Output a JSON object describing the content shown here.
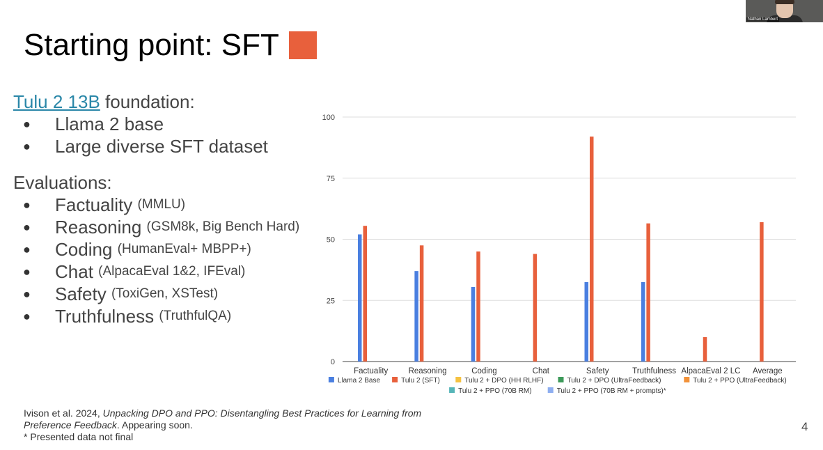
{
  "slide": {
    "title": "Starting point: SFT",
    "title_swatch_color": "#e8603c",
    "video": {
      "name": "Nathan Lambert"
    },
    "foundation": {
      "link_text": "Tulu 2 13B",
      "text": " foundation:",
      "bullets": [
        "Llama 2 base",
        "Large diverse SFT dataset"
      ]
    },
    "evaluations": {
      "heading": "Evaluations:",
      "items": [
        {
          "name": "Factuality",
          "detail": "(MMLU)"
        },
        {
          "name": "Reasoning",
          "detail": "(GSM8k, Big Bench Hard)"
        },
        {
          "name": "Coding",
          "detail": "(HumanEval+ MBPP+)"
        },
        {
          "name": "Chat",
          "detail": "(AlpacaEval 1&2, IFEval)"
        },
        {
          "name": "Safety",
          "detail": "(ToxiGen, XSTest)"
        },
        {
          "name": "Truthfulness",
          "detail": "(TruthfulQA)"
        }
      ]
    },
    "footer": {
      "authors": "Ivison et al. 2024, ",
      "paper_title_line1": "Unpacking DPO and PPO: Disentangling Best Practices for Learning from",
      "paper_title_line2": "Preference Feedback",
      "suffix": ". Appearing soon.",
      "note": "* Presented data not final"
    },
    "page_number": "4"
  },
  "chart_data": {
    "type": "bar",
    "categories": [
      "Factuality",
      "Reasoning",
      "Coding",
      "Chat",
      "Safety",
      "Truthfulness",
      "AlpacaEval 2 LC",
      "Average"
    ],
    "ylim": [
      0,
      100
    ],
    "yticks": [
      0,
      25,
      50,
      75,
      100
    ],
    "grid": true,
    "legend_position": "bottom",
    "series": [
      {
        "name": "Llama 2 Base",
        "color": "#4a7fe0",
        "values": [
          52,
          37,
          30.5,
          null,
          32.5,
          32.5,
          null,
          null
        ]
      },
      {
        "name": "Tulu 2 (SFT)",
        "color": "#e8603c",
        "values": [
          55.5,
          47.5,
          45,
          44,
          92,
          56.5,
          10,
          57
        ]
      },
      {
        "name": "Tulu 2 + DPO (HH RLHF)",
        "color": "#f5c242",
        "values": [
          null,
          null,
          null,
          null,
          null,
          null,
          null,
          null
        ]
      },
      {
        "name": "Tulu 2 + DPO (UltraFeedback)",
        "color": "#3d9a5a",
        "values": [
          null,
          null,
          null,
          null,
          null,
          null,
          null,
          null
        ]
      },
      {
        "name": "Tulu 2 + PPO (UltraFeedback)",
        "color": "#f2923a",
        "values": [
          null,
          null,
          null,
          null,
          null,
          null,
          null,
          null
        ]
      },
      {
        "name": "Tulu 2 + PPO (70B RM)",
        "color": "#56b5b8",
        "values": [
          null,
          null,
          null,
          null,
          null,
          null,
          null,
          null
        ]
      },
      {
        "name": "Tulu 2 + PPO (70B RM + prompts)*",
        "color": "#8eaef0",
        "values": [
          null,
          null,
          null,
          null,
          null,
          null,
          null,
          null
        ]
      }
    ]
  }
}
